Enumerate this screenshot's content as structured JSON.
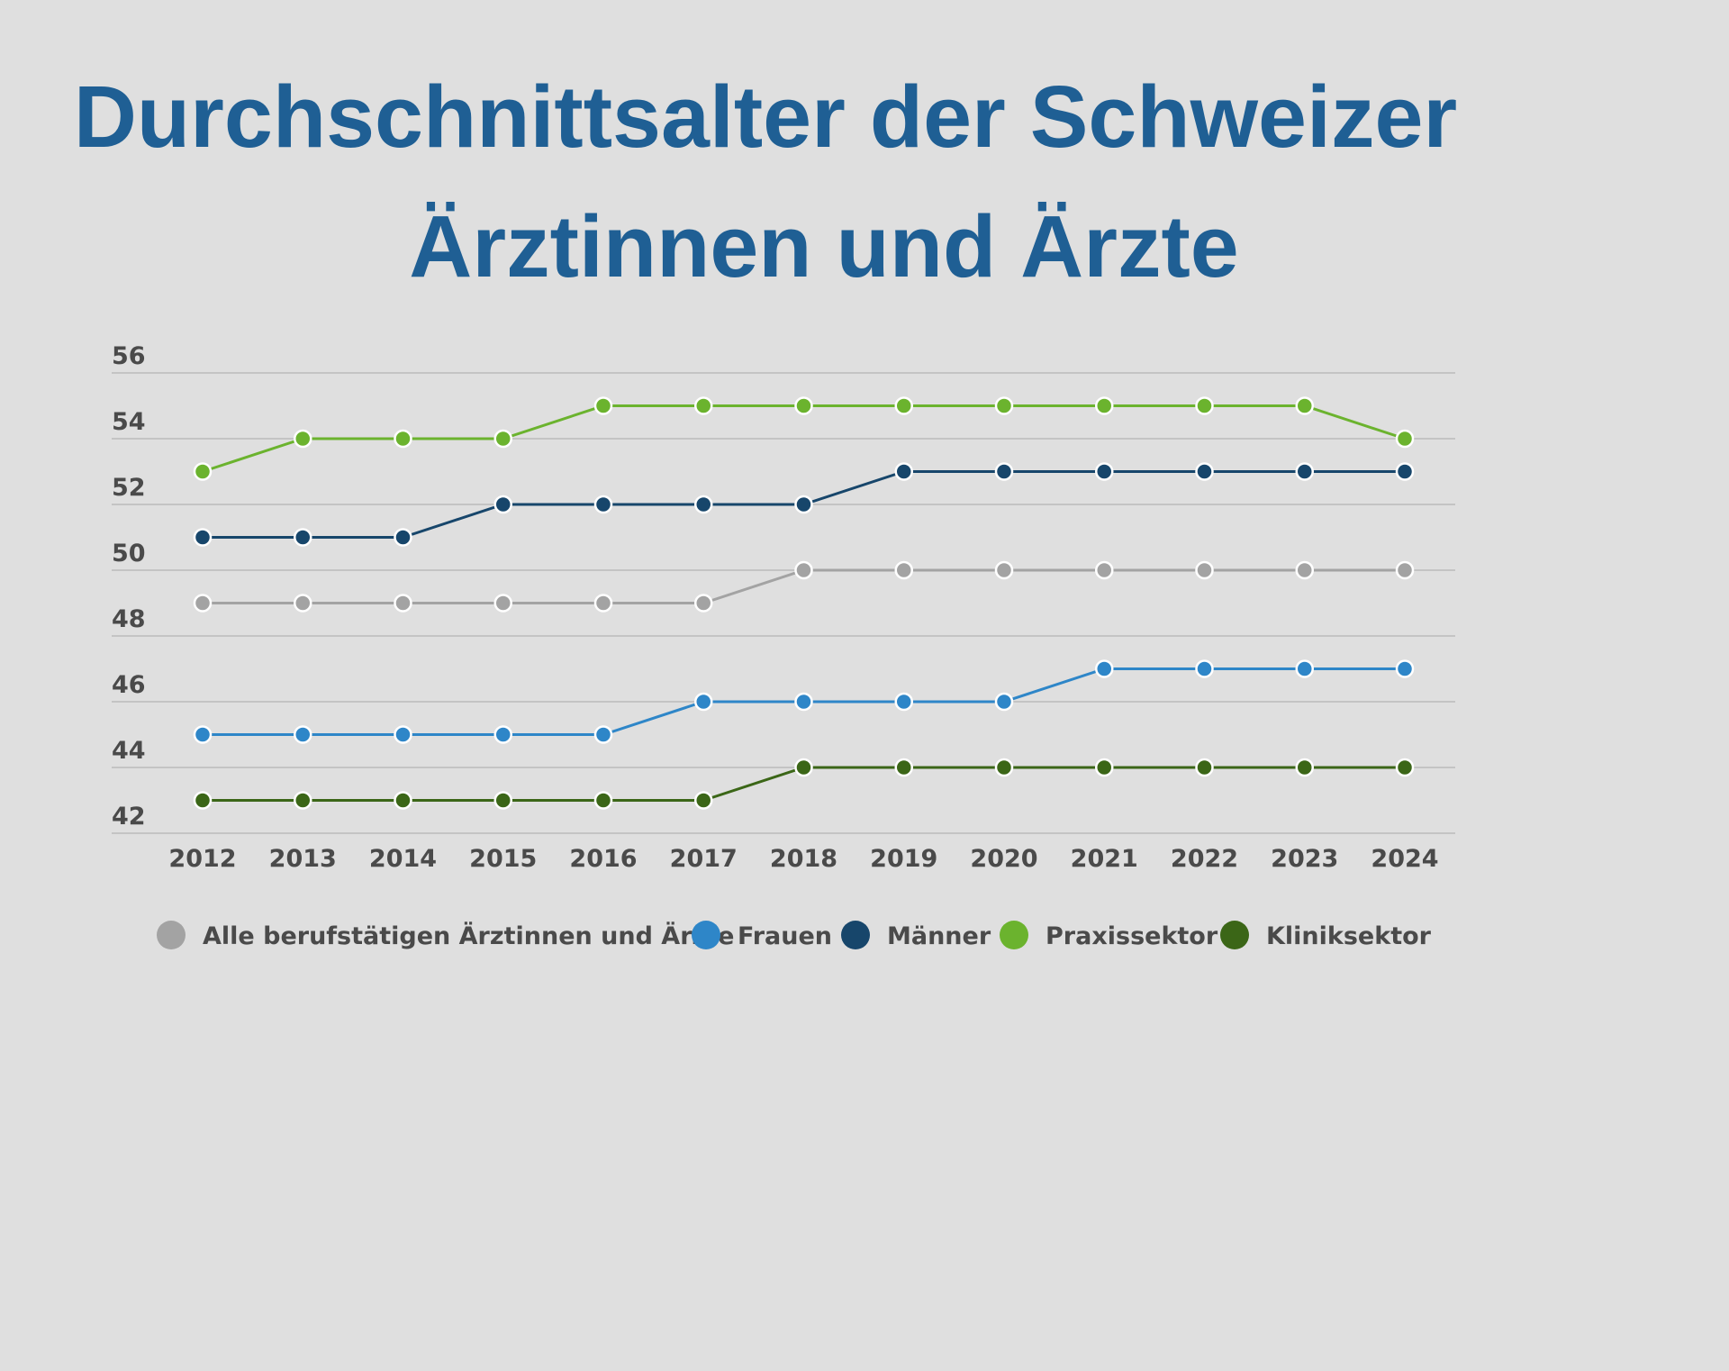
{
  "chart_data": {
    "type": "line",
    "title_lines": [
      "Durchschnittsalter der Schweizer",
      "Ärztinnen und Ärzte"
    ],
    "xlabel": "",
    "ylabel": "",
    "ylim": [
      42,
      56
    ],
    "yticks": [
      56,
      54,
      52,
      50,
      48,
      46,
      44,
      42
    ],
    "x": [
      "2012",
      "2013",
      "2014",
      "2015",
      "2016",
      "2017",
      "2018",
      "2019",
      "2020",
      "2021",
      "2022",
      "2023",
      "2024"
    ],
    "grid": true,
    "legend_position": "bottom",
    "series": [
      {
        "name": "Alle berufstätigen Ärztinnen und Ärzte",
        "color": "#a3a3a3",
        "values": [
          49,
          49,
          49,
          49,
          49,
          49,
          50,
          50,
          50,
          50,
          50,
          50,
          50
        ]
      },
      {
        "name": "Frauen",
        "color": "#2e86c8",
        "values": [
          45,
          45,
          45,
          45,
          45,
          46,
          46,
          46,
          46,
          47,
          47,
          47,
          47
        ]
      },
      {
        "name": "Männer",
        "color": "#17466b",
        "values": [
          51,
          51,
          51,
          52,
          52,
          52,
          52,
          53,
          53,
          53,
          53,
          53,
          53
        ]
      },
      {
        "name": "Praxissektor",
        "color": "#6bb32e",
        "values": [
          53,
          54,
          54,
          54,
          55,
          55,
          55,
          55,
          55,
          55,
          55,
          55,
          54
        ]
      },
      {
        "name": "Kliniksektor",
        "color": "#3b6617",
        "values": [
          43,
          43,
          43,
          43,
          43,
          43,
          44,
          44,
          44,
          44,
          44,
          44,
          44
        ]
      }
    ]
  }
}
